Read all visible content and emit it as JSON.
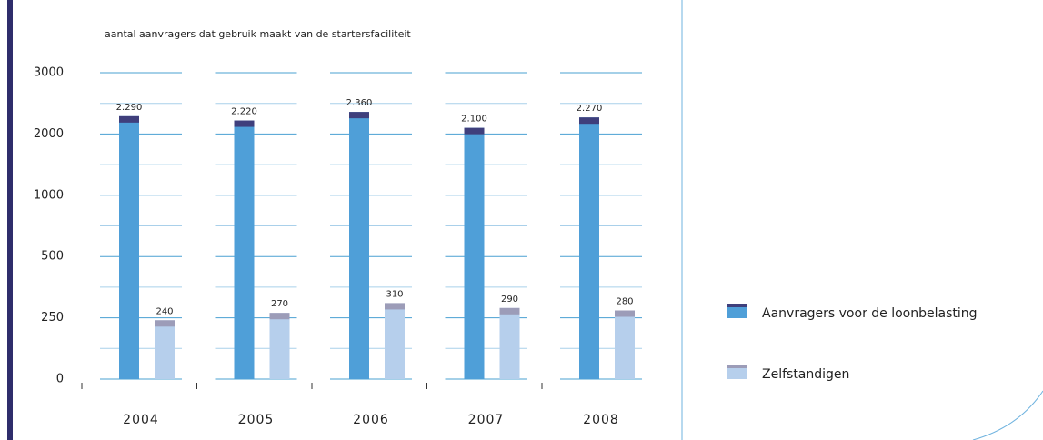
{
  "chart_data": {
    "type": "bar",
    "title": "aantal aanvragers dat gebruik maakt van de startersfaciliteit",
    "categories": [
      "2004",
      "2005",
      "2006",
      "2007",
      "2008"
    ],
    "series": [
      {
        "name": "Aanvragers voor de loonbelasting",
        "color": "#4f9fd8",
        "cap_color": "#3f3f7c",
        "values": [
          2290,
          2220,
          2360,
          2100,
          2270
        ],
        "value_labels": [
          "2.290",
          "2.220",
          "2.360",
          "2.100",
          "2.270"
        ]
      },
      {
        "name": "Zelfstandigen",
        "color": "#b6cfec",
        "cap_color": "#9c9cb8",
        "values": [
          240,
          270,
          310,
          290,
          280
        ]
      }
    ],
    "ylim": [
      0,
      3000
    ],
    "yticks": [
      0,
      250,
      500,
      1000,
      2000,
      3000
    ],
    "grid": true
  }
}
